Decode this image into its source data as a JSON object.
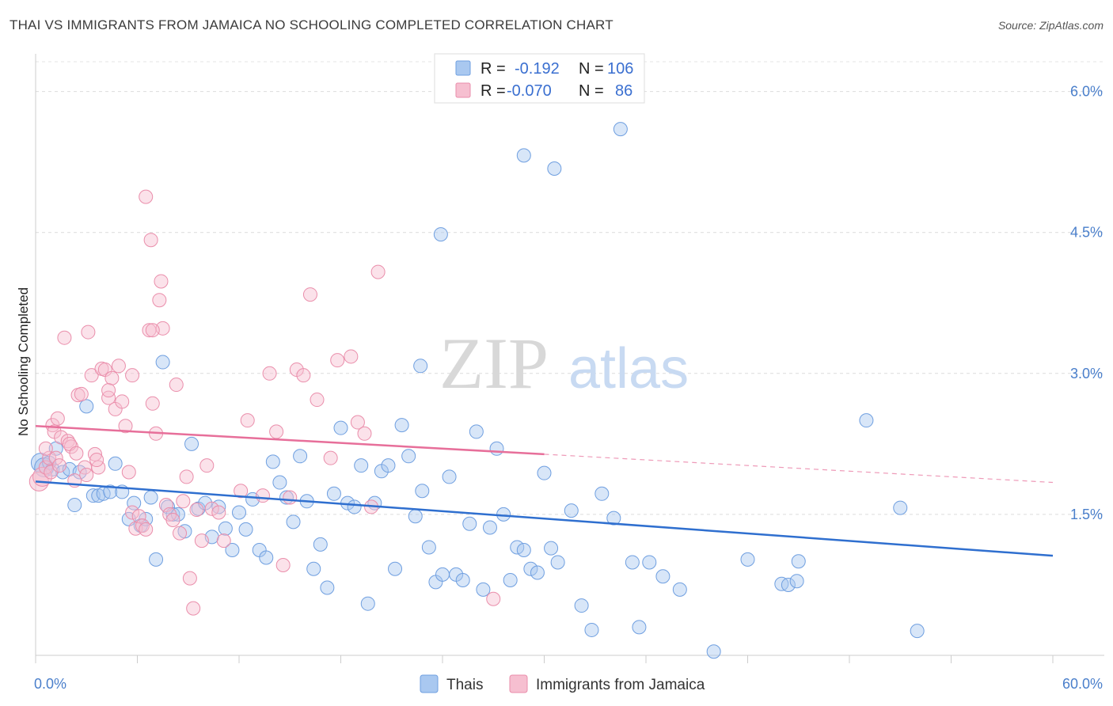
{
  "title": "THAI VS IMMIGRANTS FROM JAMAICA NO SCHOOLING COMPLETED CORRELATION CHART",
  "source": "Source: ZipAtlas.com",
  "watermark": {
    "zip": "ZIP",
    "atlas": "atlas"
  },
  "legend": {
    "r_label": "R =",
    "n_label": "N =",
    "series": [
      {
        "r": "-0.192",
        "n": "106",
        "color": "#a9c8f0",
        "stroke": "#6f9fe0"
      },
      {
        "r": "-0.070",
        "n": "86",
        "color": "#f6bfd0",
        "stroke": "#ea8eab"
      }
    ]
  },
  "chart_data": {
    "type": "scatter",
    "ylabel": "No Schooling Completed",
    "xlim": [
      0,
      60
    ],
    "ylim": [
      0,
      6.3
    ],
    "x_tick_labels": [
      "0.0%",
      "60.0%"
    ],
    "y_ticks": [
      1.5,
      3.0,
      4.5,
      6.0
    ],
    "y_tick_labels": [
      "1.5%",
      "3.0%",
      "4.5%",
      "6.0%"
    ],
    "grid": true,
    "series": [
      {
        "name": "Thais",
        "color": "#a9c8f0",
        "stroke": "#6f9fe0",
        "trend": {
          "x0": 0,
          "y0": 1.85,
          "x1": 60,
          "y1": 1.06,
          "color": "#2f6fcf"
        },
        "points": [
          [
            0.3,
            2.05
          ],
          [
            0.5,
            2.0
          ],
          [
            0.8,
            2.05
          ],
          [
            1.0,
            1.98
          ],
          [
            1.2,
            2.2
          ],
          [
            1.6,
            1.95
          ],
          [
            2.0,
            1.98
          ],
          [
            2.3,
            1.6
          ],
          [
            2.6,
            1.95
          ],
          [
            3.0,
            2.65
          ],
          [
            3.4,
            1.7
          ],
          [
            3.7,
            1.7
          ],
          [
            4.0,
            1.72
          ],
          [
            4.4,
            1.74
          ],
          [
            4.7,
            2.04
          ],
          [
            5.1,
            1.74
          ],
          [
            5.5,
            1.45
          ],
          [
            5.8,
            1.62
          ],
          [
            6.2,
            1.38
          ],
          [
            6.5,
            1.45
          ],
          [
            6.8,
            1.68
          ],
          [
            7.1,
            1.02
          ],
          [
            7.5,
            3.12
          ],
          [
            7.8,
            1.58
          ],
          [
            8.1,
            1.5
          ],
          [
            8.4,
            1.5
          ],
          [
            8.8,
            1.32
          ],
          [
            9.2,
            2.25
          ],
          [
            9.6,
            1.56
          ],
          [
            10.0,
            1.62
          ],
          [
            10.4,
            1.26
          ],
          [
            10.8,
            1.58
          ],
          [
            11.2,
            1.35
          ],
          [
            11.6,
            1.12
          ],
          [
            12.0,
            1.52
          ],
          [
            12.4,
            1.34
          ],
          [
            12.8,
            1.66
          ],
          [
            13.2,
            1.12
          ],
          [
            13.6,
            1.04
          ],
          [
            14.0,
            2.06
          ],
          [
            14.4,
            1.84
          ],
          [
            14.8,
            1.68
          ],
          [
            15.2,
            1.42
          ],
          [
            15.6,
            2.12
          ],
          [
            16.0,
            1.64
          ],
          [
            16.4,
            0.92
          ],
          [
            16.8,
            1.18
          ],
          [
            17.2,
            0.72
          ],
          [
            17.6,
            1.72
          ],
          [
            18.0,
            2.42
          ],
          [
            18.4,
            1.62
          ],
          [
            18.8,
            1.58
          ],
          [
            19.2,
            2.02
          ],
          [
            19.6,
            0.55
          ],
          [
            20.0,
            1.62
          ],
          [
            20.4,
            1.96
          ],
          [
            20.8,
            2.02
          ],
          [
            21.2,
            0.92
          ],
          [
            21.6,
            2.45
          ],
          [
            22.0,
            2.12
          ],
          [
            22.4,
            1.48
          ],
          [
            22.8,
            1.75
          ],
          [
            23.2,
            1.15
          ],
          [
            23.6,
            0.78
          ],
          [
            24.0,
            0.86
          ],
          [
            24.4,
            1.9
          ],
          [
            24.8,
            0.86
          ],
          [
            25.2,
            0.8
          ],
          [
            25.6,
            1.4
          ],
          [
            26.0,
            2.38
          ],
          [
            26.4,
            0.7
          ],
          [
            26.8,
            1.36
          ],
          [
            27.2,
            2.2
          ],
          [
            27.6,
            1.5
          ],
          [
            28.0,
            0.8
          ],
          [
            28.4,
            1.15
          ],
          [
            28.8,
            1.12
          ],
          [
            29.2,
            0.92
          ],
          [
            29.6,
            0.88
          ],
          [
            30.0,
            1.94
          ],
          [
            30.4,
            1.14
          ],
          [
            30.8,
            0.99
          ],
          [
            31.6,
            1.54
          ],
          [
            32.2,
            0.53
          ],
          [
            32.8,
            0.27
          ],
          [
            33.4,
            1.72
          ],
          [
            34.1,
            1.46
          ],
          [
            35.2,
            0.99
          ],
          [
            35.6,
            0.3
          ],
          [
            36.2,
            0.99
          ],
          [
            37.0,
            0.84
          ],
          [
            38.0,
            0.7
          ],
          [
            40.0,
            0.04
          ],
          [
            42.0,
            1.02
          ],
          [
            44.0,
            0.76
          ],
          [
            44.4,
            0.75
          ],
          [
            44.9,
            0.79
          ],
          [
            45.0,
            1.0
          ],
          [
            49.0,
            2.5
          ],
          [
            51.0,
            1.57
          ],
          [
            52.0,
            0.26
          ],
          [
            34.5,
            5.6
          ],
          [
            28.8,
            5.32
          ],
          [
            30.6,
            5.18
          ],
          [
            23.9,
            4.48
          ],
          [
            22.7,
            3.08
          ]
        ]
      },
      {
        "name": "Immigrants from Jamaica",
        "color": "#f6bfd0",
        "stroke": "#ea8eab",
        "trend": {
          "x0": 0,
          "y0": 2.44,
          "x1": 30,
          "y1": 2.14,
          "x2": 60,
          "y2": 1.84,
          "color": "#e76f9a"
        },
        "points": [
          [
            0.2,
            1.85
          ],
          [
            0.4,
            1.9
          ],
          [
            0.6,
            2.0
          ],
          [
            0.8,
            2.1
          ],
          [
            1.0,
            2.45
          ],
          [
            1.1,
            2.38
          ],
          [
            1.3,
            2.52
          ],
          [
            1.5,
            2.32
          ],
          [
            1.7,
            3.38
          ],
          [
            1.9,
            2.28
          ],
          [
            2.1,
            2.22
          ],
          [
            2.3,
            1.86
          ],
          [
            2.5,
            2.77
          ],
          [
            2.7,
            2.78
          ],
          [
            2.9,
            2.0
          ],
          [
            3.1,
            3.44
          ],
          [
            3.3,
            2.98
          ],
          [
            3.5,
            2.14
          ],
          [
            3.7,
            2.0
          ],
          [
            3.9,
            3.05
          ],
          [
            4.1,
            3.04
          ],
          [
            4.3,
            2.74
          ],
          [
            4.5,
            2.95
          ],
          [
            4.7,
            2.62
          ],
          [
            4.9,
            3.08
          ],
          [
            5.1,
            2.7
          ],
          [
            5.3,
            2.44
          ],
          [
            5.5,
            1.95
          ],
          [
            5.7,
            1.52
          ],
          [
            5.9,
            1.35
          ],
          [
            6.1,
            1.48
          ],
          [
            6.3,
            1.38
          ],
          [
            6.5,
            1.34
          ],
          [
            6.7,
            3.46
          ],
          [
            6.9,
            2.68
          ],
          [
            7.1,
            2.36
          ],
          [
            7.3,
            3.78
          ],
          [
            7.5,
            3.48
          ],
          [
            7.7,
            1.6
          ],
          [
            7.9,
            1.5
          ],
          [
            8.1,
            1.44
          ],
          [
            8.3,
            2.88
          ],
          [
            8.5,
            1.3
          ],
          [
            8.7,
            1.64
          ],
          [
            8.9,
            1.9
          ],
          [
            9.1,
            0.82
          ],
          [
            9.3,
            0.5
          ],
          [
            9.5,
            1.55
          ],
          [
            9.8,
            1.22
          ],
          [
            10.1,
            2.02
          ],
          [
            10.4,
            1.56
          ],
          [
            10.8,
            1.52
          ],
          [
            11.1,
            1.22
          ],
          [
            12.1,
            1.75
          ],
          [
            12.5,
            2.5
          ],
          [
            13.4,
            1.7
          ],
          [
            13.8,
            3.0
          ],
          [
            14.2,
            2.38
          ],
          [
            14.6,
            0.96
          ],
          [
            15.0,
            1.68
          ],
          [
            15.4,
            3.04
          ],
          [
            15.8,
            2.98
          ],
          [
            16.2,
            3.84
          ],
          [
            16.6,
            2.72
          ],
          [
            17.4,
            2.1
          ],
          [
            17.8,
            3.14
          ],
          [
            18.6,
            3.18
          ],
          [
            19.0,
            2.48
          ],
          [
            19.4,
            2.36
          ],
          [
            19.8,
            1.58
          ],
          [
            20.2,
            4.08
          ],
          [
            27.0,
            0.6
          ],
          [
            6.5,
            4.88
          ],
          [
            6.8,
            4.42
          ],
          [
            7.4,
            3.98
          ],
          [
            6.9,
            3.46
          ],
          [
            5.7,
            2.98
          ],
          [
            4.3,
            2.82
          ],
          [
            1.2,
            2.1
          ],
          [
            2.0,
            2.25
          ],
          [
            3.0,
            1.92
          ],
          [
            3.6,
            2.08
          ],
          [
            0.6,
            2.2
          ],
          [
            0.9,
            1.95
          ],
          [
            1.4,
            2.02
          ],
          [
            2.4,
            2.15
          ]
        ]
      }
    ]
  }
}
